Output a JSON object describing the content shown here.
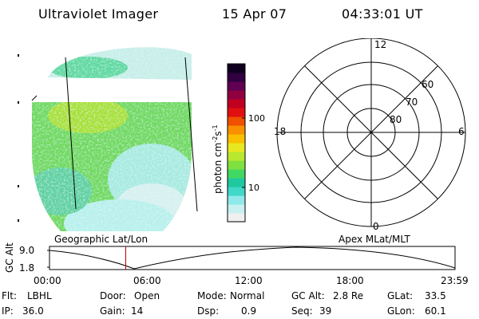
{
  "header": {
    "title": "Ultraviolet Imager",
    "date": "15 Apr 07",
    "time": "04:33:01 UT"
  },
  "colorbar": {
    "label_text": "photon cm",
    "label_sup1": "-2",
    "label_s": "s",
    "label_sup2": "-1",
    "ticks": [
      "100",
      "10"
    ],
    "colors": [
      "#f0f0f0",
      "#c8f0f0",
      "#90e8e8",
      "#40d8c8",
      "#20c8a0",
      "#40d860",
      "#80e040",
      "#b8e830",
      "#e8e820",
      "#f8c000",
      "#f89000",
      "#f05000",
      "#e01010",
      "#c00020",
      "#900040",
      "#600050",
      "#300040",
      "#100020"
    ]
  },
  "polar": {
    "mlt_labels": [
      "12",
      "18",
      "6",
      "0"
    ],
    "lat_labels": [
      "60",
      "70",
      "80"
    ]
  },
  "timeline": {
    "left_label": "Geographic Lat/Lon",
    "right_label": "Apex MLat/MLT",
    "axis_title": "GC Alt",
    "y_ticks": [
      "9.0",
      "1.8"
    ],
    "x_ticks": [
      "00:00",
      "06:00",
      "12:00",
      "18:00",
      "23:59"
    ],
    "current_time_fraction": 0.188
  },
  "info": {
    "flt_label": "Flt:",
    "flt_value": "LBHL",
    "ip_label": "IP:",
    "ip_value": "36.0",
    "door_label": "Door:",
    "door_value": "Open",
    "gain_label": "Gain:",
    "gain_value": "14",
    "mode_label": "Mode:",
    "mode_value": "Normal",
    "dsp_label": "Dsp:",
    "dsp_value": "0.9",
    "gcalt_label": "GC Alt:",
    "gcalt_value": "2.8 Re",
    "seq_label": "Seq:",
    "seq_value": "39",
    "glat_label": "GLat:",
    "glat_value": "33.5",
    "glon_label": "GLon:",
    "glon_value": "60.1"
  }
}
